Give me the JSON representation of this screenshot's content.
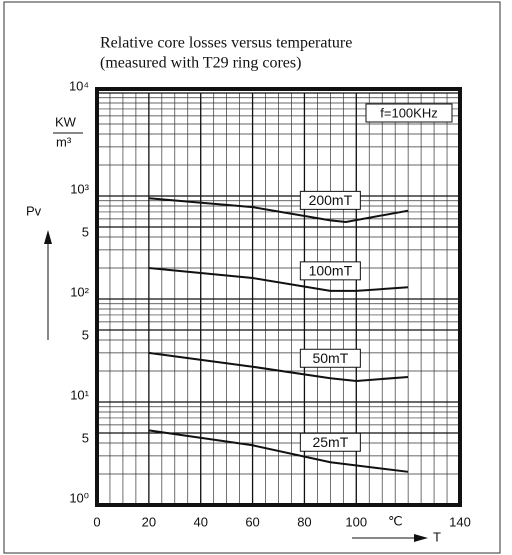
{
  "chart_data": {
    "type": "line",
    "title": "Relative core losses versus temperature",
    "subtitle": "(measured with T29 ring cores)",
    "annotation": "f=100KHz",
    "y_label": "Pv",
    "y_unit_top": "KW",
    "y_unit_bottom": "m³",
    "x_label": "T",
    "x_unit": "℃",
    "log_y": true,
    "grid": true,
    "xlim": [
      0,
      140
    ],
    "xticks": [
      0,
      20,
      40,
      60,
      80,
      100,
      140
    ],
    "ylim": [
      1,
      10000
    ],
    "yticks": [
      {
        "value": 10000,
        "label": "10⁴"
      },
      {
        "value": 1000,
        "label": "10³"
      },
      {
        "value": 500,
        "label": "5"
      },
      {
        "value": 100,
        "label": "10²"
      },
      {
        "value": 50,
        "label": "5"
      },
      {
        "value": 10,
        "label": "10¹"
      },
      {
        "value": 5,
        "label": "5"
      },
      {
        "value": 1,
        "label": "10⁰"
      }
    ],
    "series": [
      {
        "name": "200mT",
        "color": "#111111",
        "x": [
          20,
          60,
          90,
          96,
          120
        ],
        "values": [
          950,
          780,
          580,
          560,
          720
        ]
      },
      {
        "name": "100mT",
        "color": "#111111",
        "x": [
          20,
          60,
          90,
          100,
          120
        ],
        "values": [
          200,
          160,
          120,
          120,
          130
        ]
      },
      {
        "name": "50mT",
        "color": "#111111",
        "x": [
          20,
          60,
          90,
          100,
          120
        ],
        "values": [
          30,
          22,
          17,
          16,
          17.5
        ]
      },
      {
        "name": "25mT",
        "color": "#111111",
        "x": [
          20,
          60,
          90,
          120
        ],
        "values": [
          5.3,
          3.8,
          2.6,
          2.1
        ]
      }
    ]
  }
}
